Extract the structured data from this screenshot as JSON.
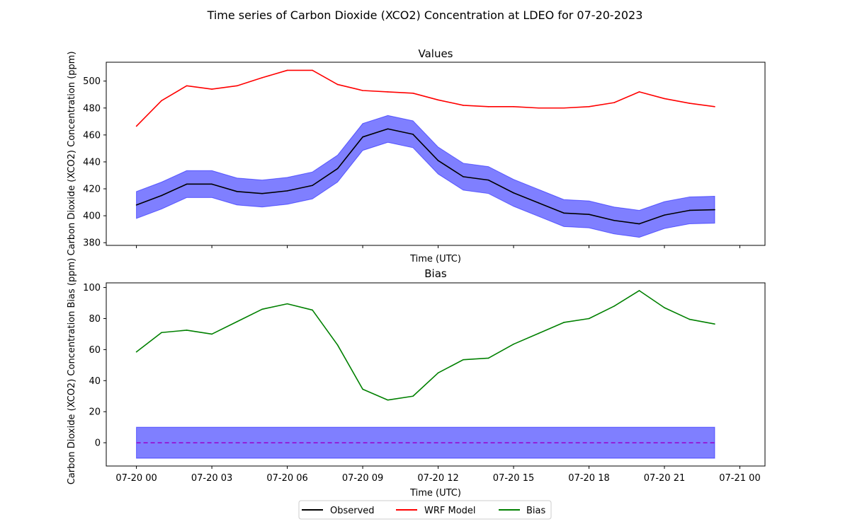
{
  "suptitle": "Time series of Carbon Dioxide (XCO2) Concentration at LDEO for 07-20-2023",
  "x_ticks": [
    "07-20 00",
    "07-20 03",
    "07-20 06",
    "07-20 09",
    "07-20 12",
    "07-20 15",
    "07-20 18",
    "07-20 21",
    "07-21 00"
  ],
  "legend": {
    "placement": "bottom-center",
    "entries": [
      {
        "label": "Observed",
        "color": "#000000"
      },
      {
        "label": "WRF Model",
        "color": "#ff0000"
      },
      {
        "label": "Bias",
        "color": "#008000"
      }
    ]
  },
  "chart_data": [
    {
      "type": "line",
      "title": "Values",
      "xlabel": "Time (UTC)",
      "ylabel": "Carbon Dioxide (XCO2) Concentration (ppm)",
      "x_hours": [
        0,
        1,
        2,
        3,
        4,
        5,
        6,
        7,
        8,
        9,
        10,
        11,
        12,
        13,
        14,
        15,
        16,
        17,
        18,
        19,
        20,
        21,
        22,
        23
      ],
      "xlim_hours": [
        -1.2,
        25.0
      ],
      "ylim": [
        378,
        514
      ],
      "yticks": [
        380,
        400,
        420,
        440,
        460,
        480,
        500
      ],
      "grid": false,
      "series": [
        {
          "name": "Observed",
          "color": "#000000",
          "values": [
            408,
            415,
            423.5,
            423.5,
            418,
            416.5,
            418.5,
            422.5,
            435,
            458.5,
            464.5,
            460.5,
            441,
            429,
            426.5,
            417,
            409.5,
            402,
            401,
            396.5,
            394,
            400.5,
            404,
            404.5
          ],
          "band_halfwidth": 10,
          "band_color": "#0000ff",
          "band_alpha": 0.5
        },
        {
          "name": "WRF Model",
          "color": "#ff0000",
          "values": [
            466.5,
            485.5,
            496.5,
            494,
            496.5,
            502.5,
            508,
            508,
            497.5,
            493,
            492,
            491,
            486,
            482,
            481,
            481,
            480,
            480,
            481,
            484,
            492,
            487,
            483.5,
            481
          ]
        }
      ]
    },
    {
      "type": "line",
      "title": "Bias",
      "xlabel": "Time (UTC)",
      "ylabel": "Carbon Dioxide (XCO2) Concentration Bias (ppm)",
      "x_hours": [
        0,
        1,
        2,
        3,
        4,
        5,
        6,
        7,
        8,
        9,
        10,
        11,
        12,
        13,
        14,
        15,
        16,
        17,
        18,
        19,
        20,
        21,
        22,
        23
      ],
      "xlim_hours": [
        -1.2,
        25.0
      ],
      "ylim": [
        -15,
        103
      ],
      "yticks": [
        0,
        20,
        40,
        60,
        80,
        100
      ],
      "grid": false,
      "series": [
        {
          "name": "Bias",
          "color": "#008000",
          "values": [
            58.5,
            71,
            72.5,
            70,
            78,
            86,
            89.5,
            85.5,
            63,
            34.5,
            27.5,
            30,
            45,
            53.5,
            54.5,
            63.5,
            70.5,
            77.5,
            80,
            88,
            98,
            87,
            79.5,
            76.5
          ]
        }
      ],
      "zero_line": {
        "value": 0,
        "color": "#9900cc",
        "style": "dashed"
      },
      "zero_band": {
        "low": -10,
        "high": 10,
        "color": "#0000ff",
        "alpha": 0.5
      }
    }
  ]
}
